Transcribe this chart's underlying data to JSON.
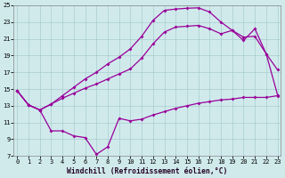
{
  "bg_color": "#d0eaec",
  "grid_color": "#a8ccce",
  "line_color": "#990099",
  "xlim": [
    0,
    23
  ],
  "ylim": [
    7,
    25
  ],
  "xticks": [
    0,
    1,
    2,
    3,
    4,
    5,
    6,
    7,
    8,
    9,
    10,
    11,
    12,
    13,
    14,
    15,
    16,
    17,
    18,
    19,
    20,
    21,
    22,
    23
  ],
  "yticks": [
    7,
    9,
    11,
    13,
    15,
    17,
    19,
    21,
    23,
    25
  ],
  "xlabel": "Windchill (Refroidissement éolien,°C)",
  "s1_x": [
    0,
    1,
    2,
    3,
    4,
    5,
    6,
    7,
    8,
    9,
    10,
    11,
    12,
    13,
    14,
    15,
    16,
    17,
    18,
    19,
    20,
    21,
    22,
    23
  ],
  "s1_y": [
    14.8,
    13.1,
    12.5,
    10.0,
    10.0,
    9.4,
    9.2,
    7.2,
    8.1,
    11.5,
    11.2,
    11.4,
    11.9,
    12.3,
    12.7,
    13.0,
    13.3,
    13.5,
    13.7,
    13.8,
    14.0,
    14.0,
    14.0,
    14.2
  ],
  "s2_x": [
    0,
    1,
    2,
    3,
    4,
    5,
    6,
    7,
    8,
    9,
    10,
    11,
    12,
    13,
    14,
    15,
    16,
    17,
    18,
    19,
    20,
    21,
    22,
    23
  ],
  "s2_y": [
    14.8,
    13.1,
    12.5,
    13.2,
    13.9,
    14.5,
    15.1,
    15.6,
    16.2,
    16.8,
    17.4,
    18.7,
    20.4,
    21.8,
    22.4,
    22.5,
    22.6,
    22.2,
    21.6,
    22.0,
    21.2,
    21.3,
    19.2,
    14.3
  ],
  "s3_x": [
    0,
    1,
    2,
    3,
    4,
    5,
    6,
    7,
    8,
    9,
    10,
    11,
    12,
    13,
    14,
    15,
    16,
    17,
    18,
    19,
    20,
    21,
    22,
    23
  ],
  "s3_y": [
    14.8,
    13.1,
    12.5,
    13.2,
    14.2,
    15.2,
    16.2,
    17.0,
    18.0,
    18.8,
    19.8,
    21.3,
    23.2,
    24.4,
    24.55,
    24.65,
    24.7,
    24.2,
    23.0,
    22.0,
    20.8,
    22.2,
    19.2,
    17.3
  ],
  "tick_fontsize": 5.0,
  "label_fontsize": 5.8,
  "lw": 0.9,
  "ms": 2.0
}
